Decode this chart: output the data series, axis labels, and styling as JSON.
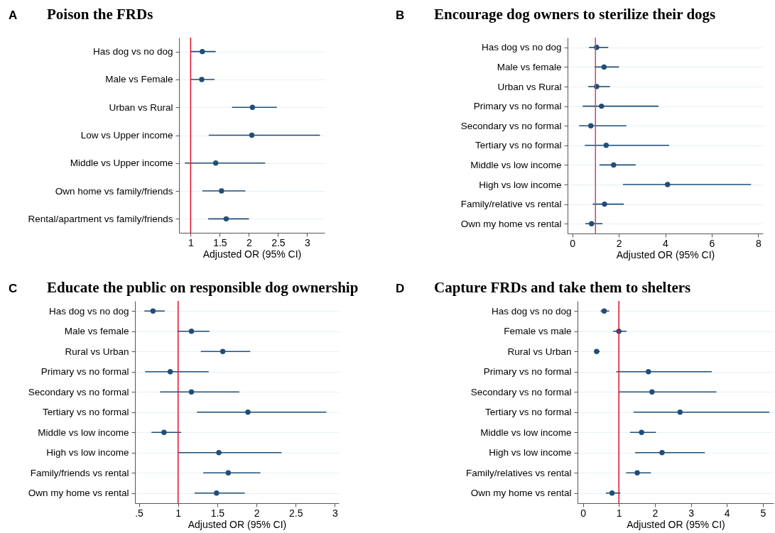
{
  "chart_data": [
    {
      "type": "scatter",
      "orientation": "horizontal",
      "title": "Poison the FRDs",
      "annotations": [
        "A"
      ],
      "xlabel": "Adjusted OR (95% CI)",
      "categories": [
        "Has dog vs no dog",
        "Male vs Female",
        "Urban vs Rural",
        "Low vs Upper income",
        "Middle vs Upper income",
        "Own home vs family/friends",
        "Rental/apartment vs family/friends"
      ],
      "series": [
        {
          "color": "#1f4e79",
          "values": [
            1.2,
            1.19,
            2.06,
            2.05,
            1.43,
            1.53,
            1.61
          ],
          "errors": [
            [
              1.0,
              1.43
            ],
            [
              1.0,
              1.41
            ],
            [
              1.71,
              2.48
            ],
            [
              1.31,
              3.22
            ],
            [
              0.9,
              2.28
            ],
            [
              1.2,
              1.94
            ],
            [
              1.3,
              2.0
            ]
          ]
        }
      ],
      "xlim": [
        0.8,
        3.3
      ],
      "xticks": [
        1,
        1.5,
        2,
        2.5,
        3
      ],
      "grid": "y",
      "marker": "circle",
      "ref_lines": [
        {
          "axis": "x",
          "value": 1,
          "color": "#e0102f"
        }
      ]
    },
    {
      "type": "scatter",
      "orientation": "horizontal",
      "title": "Encourage dog owners to sterilize their dogs",
      "annotations": [
        "B"
      ],
      "xlabel": "Adjusted OR (95% CI)",
      "categories": [
        "Has dog vs no dog",
        "Male vs female",
        "Urban vs Rural",
        "Primary vs no formal",
        "Secondary vs no formal",
        "Tertiary vs no formal",
        "Middle vs low income",
        "High vs low income",
        "Family/relative vs rental",
        "Own my home vs rental"
      ],
      "series": [
        {
          "color": "#1f4e79",
          "values": [
            1.05,
            1.37,
            1.05,
            1.26,
            0.8,
            1.46,
            1.78,
            4.1,
            1.39,
            0.83
          ],
          "errors": [
            [
              0.72,
              1.55
            ],
            [
              0.96,
              2.01
            ],
            [
              0.69,
              1.62
            ],
            [
              0.45,
              3.71
            ],
            [
              0.3,
              2.33
            ],
            [
              0.54,
              4.17
            ],
            [
              1.17,
              2.73
            ],
            [
              2.18,
              7.69
            ],
            [
              0.88,
              2.22
            ],
            [
              0.56,
              1.3
            ]
          ]
        }
      ],
      "xlim": [
        -0.2,
        8.2
      ],
      "xticks": [
        0,
        2,
        4,
        6,
        8
      ],
      "grid": "y",
      "marker": "circle",
      "ref_lines": [
        {
          "axis": "x",
          "value": 1,
          "color": "#d0435a"
        }
      ]
    },
    {
      "type": "scatter",
      "orientation": "horizontal",
      "title": "Educate the public on responsible dog ownership",
      "annotations": [
        "C"
      ],
      "xlabel": "Adjusted OR (95% CI)",
      "categories": [
        "Has dog vs no dog",
        "Male vs female",
        "Rural vs Urban",
        "Primary vs no formal",
        "Secondary vs no formal",
        "Tertiary vs no formal",
        "Middle vs low income",
        "High vs low income",
        "Family/friends vs rental",
        "Own my home vs rental"
      ],
      "series": [
        {
          "color": "#1f4e79",
          "values": [
            0.68,
            1.17,
            1.57,
            0.9,
            1.17,
            1.89,
            0.82,
            1.52,
            1.64,
            1.49
          ],
          "errors": [
            [
              0.57,
              0.83
            ],
            [
              0.99,
              1.4
            ],
            [
              1.29,
              1.92
            ],
            [
              0.58,
              1.39
            ],
            [
              0.77,
              1.78
            ],
            [
              1.24,
              2.89
            ],
            [
              0.66,
              1.04
            ],
            [
              1.0,
              2.32
            ],
            [
              1.32,
              2.05
            ],
            [
              1.21,
              1.85
            ]
          ]
        }
      ],
      "xlim": [
        0.45,
        3.05
      ],
      "xticks": [
        {
          "value": 0.5,
          "label": ".5"
        },
        1,
        1.5,
        2,
        2.5,
        3
      ],
      "grid": "y",
      "marker": "circle",
      "ref_lines": [
        {
          "axis": "x",
          "value": 1,
          "color": "#e0102f"
        }
      ]
    },
    {
      "type": "scatter",
      "orientation": "horizontal",
      "title": "Capture FRDs and take them to shelters",
      "annotations": [
        "D"
      ],
      "xlabel": "Adjusted OR (95% CI)",
      "categories": [
        "Has dog vs no dog",
        "Female vs male",
        "Rural vs Urban",
        "Primary vs no formal",
        "Secondary vs no formal",
        "Tertiary vs no formal",
        "Middle vs low income",
        "High vs low income",
        "Family/relatives vs rental",
        "Own my home vs rental"
      ],
      "series": [
        {
          "color": "#1f4e79",
          "values": [
            0.59,
            1.0,
            0.38,
            1.82,
            1.92,
            2.7,
            1.63,
            2.2,
            1.51,
            0.81
          ],
          "errors": [
            [
              0.49,
              0.73
            ],
            [
              0.84,
              1.21
            ],
            [
              0.32,
              0.47
            ],
            [
              0.93,
              3.58
            ],
            [
              1.0,
              3.71
            ],
            [
              1.41,
              5.18
            ],
            [
              1.31,
              2.03
            ],
            [
              1.45,
              3.39
            ],
            [
              1.2,
              1.89
            ],
            [
              0.64,
              1.04
            ]
          ]
        }
      ],
      "xlim": [
        -0.15,
        5.3
      ],
      "xticks": [
        0,
        1,
        2,
        3,
        4,
        5
      ],
      "grid": "y",
      "marker": "circle",
      "ref_lines": [
        {
          "axis": "x",
          "value": 1,
          "color": "#e0102f"
        }
      ]
    }
  ]
}
